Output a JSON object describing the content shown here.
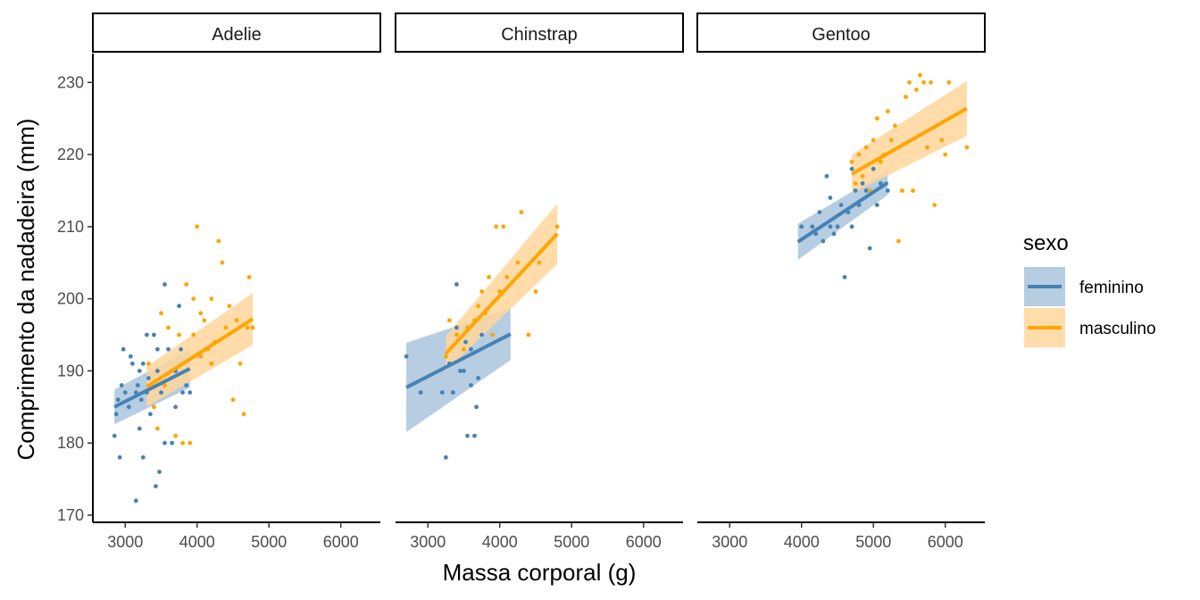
{
  "chart_data": {
    "type": "scatter",
    "xlabel": "Massa corporal (g)",
    "ylabel": "Comprimento da nadadeira (mm)",
    "xlim": [
      2550,
      6550
    ],
    "ylim": [
      169,
      234
    ],
    "x_ticks": [
      3000,
      4000,
      5000,
      6000
    ],
    "y_ticks": [
      170,
      180,
      190,
      200,
      210,
      220,
      230
    ],
    "legend": {
      "title": "sexo",
      "placement": "right",
      "entries": [
        {
          "key": "feminino",
          "label": "feminino",
          "color": "#4682B4",
          "band_color": "#A9C4DD"
        },
        {
          "key": "masculino",
          "label": "masculino",
          "color": "#FFA500",
          "band_color": "#FFD69A"
        }
      ]
    },
    "facets": [
      {
        "name": "Adelie",
        "fits": [
          {
            "sex": "feminino",
            "x": [
              2850,
              3900
            ],
            "y": [
              185.0,
              190.3
            ],
            "se_low": [
              182.6,
              187.7
            ],
            "se_high": [
              187.4,
              193.0
            ]
          },
          {
            "sex": "masculino",
            "x": [
              3300,
              4775
            ],
            "y": [
              187.8,
              197.2
            ],
            "se_low": [
              185.0,
              193.6
            ],
            "se_high": [
              190.6,
              200.8
            ]
          }
        ],
        "points": {
          "feminino": [
            [
              2850,
              181
            ],
            [
              2875,
              184
            ],
            [
              2900,
              186
            ],
            [
              2925,
              178
            ],
            [
              2950,
              188
            ],
            [
              2975,
              193
            ],
            [
              3000,
              187
            ],
            [
              3050,
              185
            ],
            [
              3075,
              192
            ],
            [
              3100,
              191
            ],
            [
              3150,
              172
            ],
            [
              3150,
              187
            ],
            [
              3175,
              188
            ],
            [
              3200,
              182
            ],
            [
              3200,
              190
            ],
            [
              3225,
              186
            ],
            [
              3250,
              178
            ],
            [
              3250,
              191
            ],
            [
              3300,
              195
            ],
            [
              3300,
              187
            ],
            [
              3325,
              189
            ],
            [
              3350,
              184
            ],
            [
              3400,
              195
            ],
            [
              3400,
              185
            ],
            [
              3425,
              174
            ],
            [
              3450,
              190
            ],
            [
              3450,
              193
            ],
            [
              3475,
              176
            ],
            [
              3500,
              187
            ],
            [
              3550,
              202
            ],
            [
              3550,
              180
            ],
            [
              3600,
              193
            ],
            [
              3650,
              180
            ],
            [
              3700,
              185
            ],
            [
              3750,
              199
            ],
            [
              3775,
              193
            ],
            [
              3800,
              187
            ],
            [
              3850,
              188
            ],
            [
              3900,
              187
            ],
            [
              3700,
              190
            ]
          ],
          "masculino": [
            [
              3325,
              191
            ],
            [
              3400,
              185
            ],
            [
              3450,
              182
            ],
            [
              3500,
              198
            ],
            [
              3550,
              188
            ],
            [
              3600,
              196
            ],
            [
              3650,
              190
            ],
            [
              3700,
              181
            ],
            [
              3750,
              195
            ],
            [
              3800,
              180
            ],
            [
              3850,
              202
            ],
            [
              3900,
              180
            ],
            [
              3950,
              195
            ],
            [
              4000,
              210
            ],
            [
              4050,
              192
            ],
            [
              4100,
              197
            ],
            [
              4150,
              193
            ],
            [
              4200,
              200
            ],
            [
              4250,
              194
            ],
            [
              4300,
              208
            ],
            [
              4350,
              205
            ],
            [
              4400,
              196
            ],
            [
              4450,
              199
            ],
            [
              4500,
              186
            ],
            [
              4550,
              197
            ],
            [
              4600,
              191
            ],
            [
              4650,
              184
            ],
            [
              4700,
              196
            ],
            [
              4725,
              203
            ],
            [
              4775,
              196
            ],
            [
              4200,
              191
            ],
            [
              3950,
              200
            ],
            [
              4050,
              198
            ]
          ]
        }
      },
      {
        "name": "Chinstrap",
        "fits": [
          {
            "sex": "feminino",
            "x": [
              2700,
              4150
            ],
            "y": [
              187.7,
              195.1
            ],
            "se_low": [
              181.5,
              191.5
            ],
            "se_high": [
              193.9,
              198.7
            ]
          },
          {
            "sex": "masculino",
            "x": [
              3250,
              4800
            ],
            "y": [
              192.4,
              209.0
            ],
            "se_low": [
              190.0,
              204.8
            ],
            "se_high": [
              194.8,
              213.2
            ]
          }
        ],
        "points": {
          "feminino": [
            [
              2700,
              192
            ],
            [
              2900,
              187
            ],
            [
              3200,
              187
            ],
            [
              3250,
              178
            ],
            [
              3300,
              191
            ],
            [
              3350,
              187
            ],
            [
              3400,
              202
            ],
            [
              3450,
              190
            ],
            [
              3500,
              190
            ],
            [
              3525,
              194
            ],
            [
              3550,
              181
            ],
            [
              3600,
              188
            ],
            [
              3650,
              181
            ],
            [
              3675,
              185
            ],
            [
              3700,
              189
            ],
            [
              3400,
              196
            ],
            [
              3600,
              193
            ],
            [
              3750,
              195
            ]
          ],
          "masculino": [
            [
              3250,
              192
            ],
            [
              3300,
              197
            ],
            [
              3400,
              195
            ],
            [
              3500,
              193
            ],
            [
              3550,
              196
            ],
            [
              3650,
              197
            ],
            [
              3700,
              199
            ],
            [
              3750,
              201
            ],
            [
              3800,
              198
            ],
            [
              3850,
              203
            ],
            [
              3900,
              195
            ],
            [
              3950,
              210
            ],
            [
              4000,
              201
            ],
            [
              4050,
              210
            ],
            [
              4100,
              203
            ],
            [
              4250,
              205
            ],
            [
              4300,
              212
            ],
            [
              4400,
              195
            ],
            [
              4500,
              201
            ],
            [
              4550,
              205
            ],
            [
              4800,
              210
            ]
          ]
        }
      },
      {
        "name": "Gentoo",
        "fits": [
          {
            "sex": "feminino",
            "x": [
              3950,
              5200
            ],
            "y": [
              207.9,
              216.1
            ],
            "se_low": [
              205.4,
              214.4
            ],
            "se_high": [
              210.4,
              217.8
            ]
          },
          {
            "sex": "masculino",
            "x": [
              4700,
              6300
            ],
            "y": [
              217.3,
              226.4
            ],
            "se_low": [
              214.6,
              222.6
            ],
            "se_high": [
              220.0,
              230.2
            ]
          }
        ],
        "points": {
          "feminino": [
            [
              4000,
              210
            ],
            [
              4150,
              210
            ],
            [
              4200,
              209
            ],
            [
              4250,
              212
            ],
            [
              4300,
              208
            ],
            [
              4350,
              217
            ],
            [
              4400,
              214
            ],
            [
              4450,
              209
            ],
            [
              4500,
              210
            ],
            [
              4550,
              213
            ],
            [
              4600,
              203
            ],
            [
              4650,
              212
            ],
            [
              4700,
              210
            ],
            [
              4750,
              215
            ],
            [
              4800,
              213
            ],
            [
              4850,
              216
            ],
            [
              4900,
              215
            ],
            [
              4950,
              207
            ],
            [
              5000,
              218
            ],
            [
              5050,
              213
            ],
            [
              5100,
              216
            ],
            [
              5200,
              215
            ],
            [
              4400,
              210
            ],
            [
              4700,
              218
            ]
          ],
          "masculino": [
            [
              4700,
              219
            ],
            [
              4750,
              216
            ],
            [
              4800,
              220
            ],
            [
              4850,
              217
            ],
            [
              4900,
              221
            ],
            [
              4950,
              215
            ],
            [
              5000,
              222
            ],
            [
              5050,
              225
            ],
            [
              5100,
              219
            ],
            [
              5150,
              220
            ],
            [
              5200,
              226
            ],
            [
              5250,
              222
            ],
            [
              5300,
              224
            ],
            [
              5350,
              208
            ],
            [
              5400,
              215
            ],
            [
              5450,
              228
            ],
            [
              5500,
              230
            ],
            [
              5550,
              215
            ],
            [
              5600,
              229
            ],
            [
              5650,
              231
            ],
            [
              5700,
              230
            ],
            [
              5750,
              221
            ],
            [
              5800,
              230
            ],
            [
              5850,
              213
            ],
            [
              5950,
              222
            ],
            [
              6000,
              220
            ],
            [
              6050,
              230
            ],
            [
              6300,
              221
            ]
          ]
        }
      }
    ]
  }
}
